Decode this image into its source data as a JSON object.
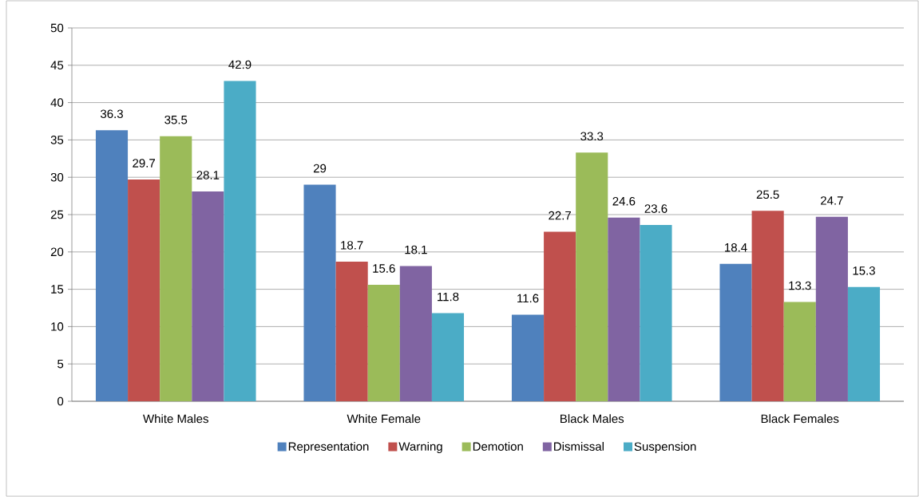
{
  "chart_data": {
    "type": "bar",
    "categories": [
      "White Males",
      "White Female",
      "Black Males",
      "Black Females"
    ],
    "series": [
      {
        "name": "Representation",
        "color": "#4f81bd",
        "values": [
          36.3,
          29,
          11.6,
          18.4
        ]
      },
      {
        "name": "Warning",
        "color": "#c0504d",
        "values": [
          29.7,
          18.7,
          22.7,
          25.5
        ]
      },
      {
        "name": "Demotion",
        "color": "#9bbb59",
        "values": [
          35.5,
          15.6,
          33.3,
          13.3
        ]
      },
      {
        "name": "Dismissal",
        "color": "#8064a2",
        "values": [
          28.1,
          18.1,
          24.6,
          24.7
        ]
      },
      {
        "name": "Suspension",
        "color": "#4bacc6",
        "values": [
          42.9,
          11.8,
          23.6,
          15.3
        ]
      }
    ],
    "ylim": [
      0,
      50
    ],
    "yticks": [
      0,
      5,
      10,
      15,
      20,
      25,
      30,
      35,
      40,
      45,
      50
    ],
    "grid": "y",
    "legend": "bottom",
    "data_labels": true
  }
}
